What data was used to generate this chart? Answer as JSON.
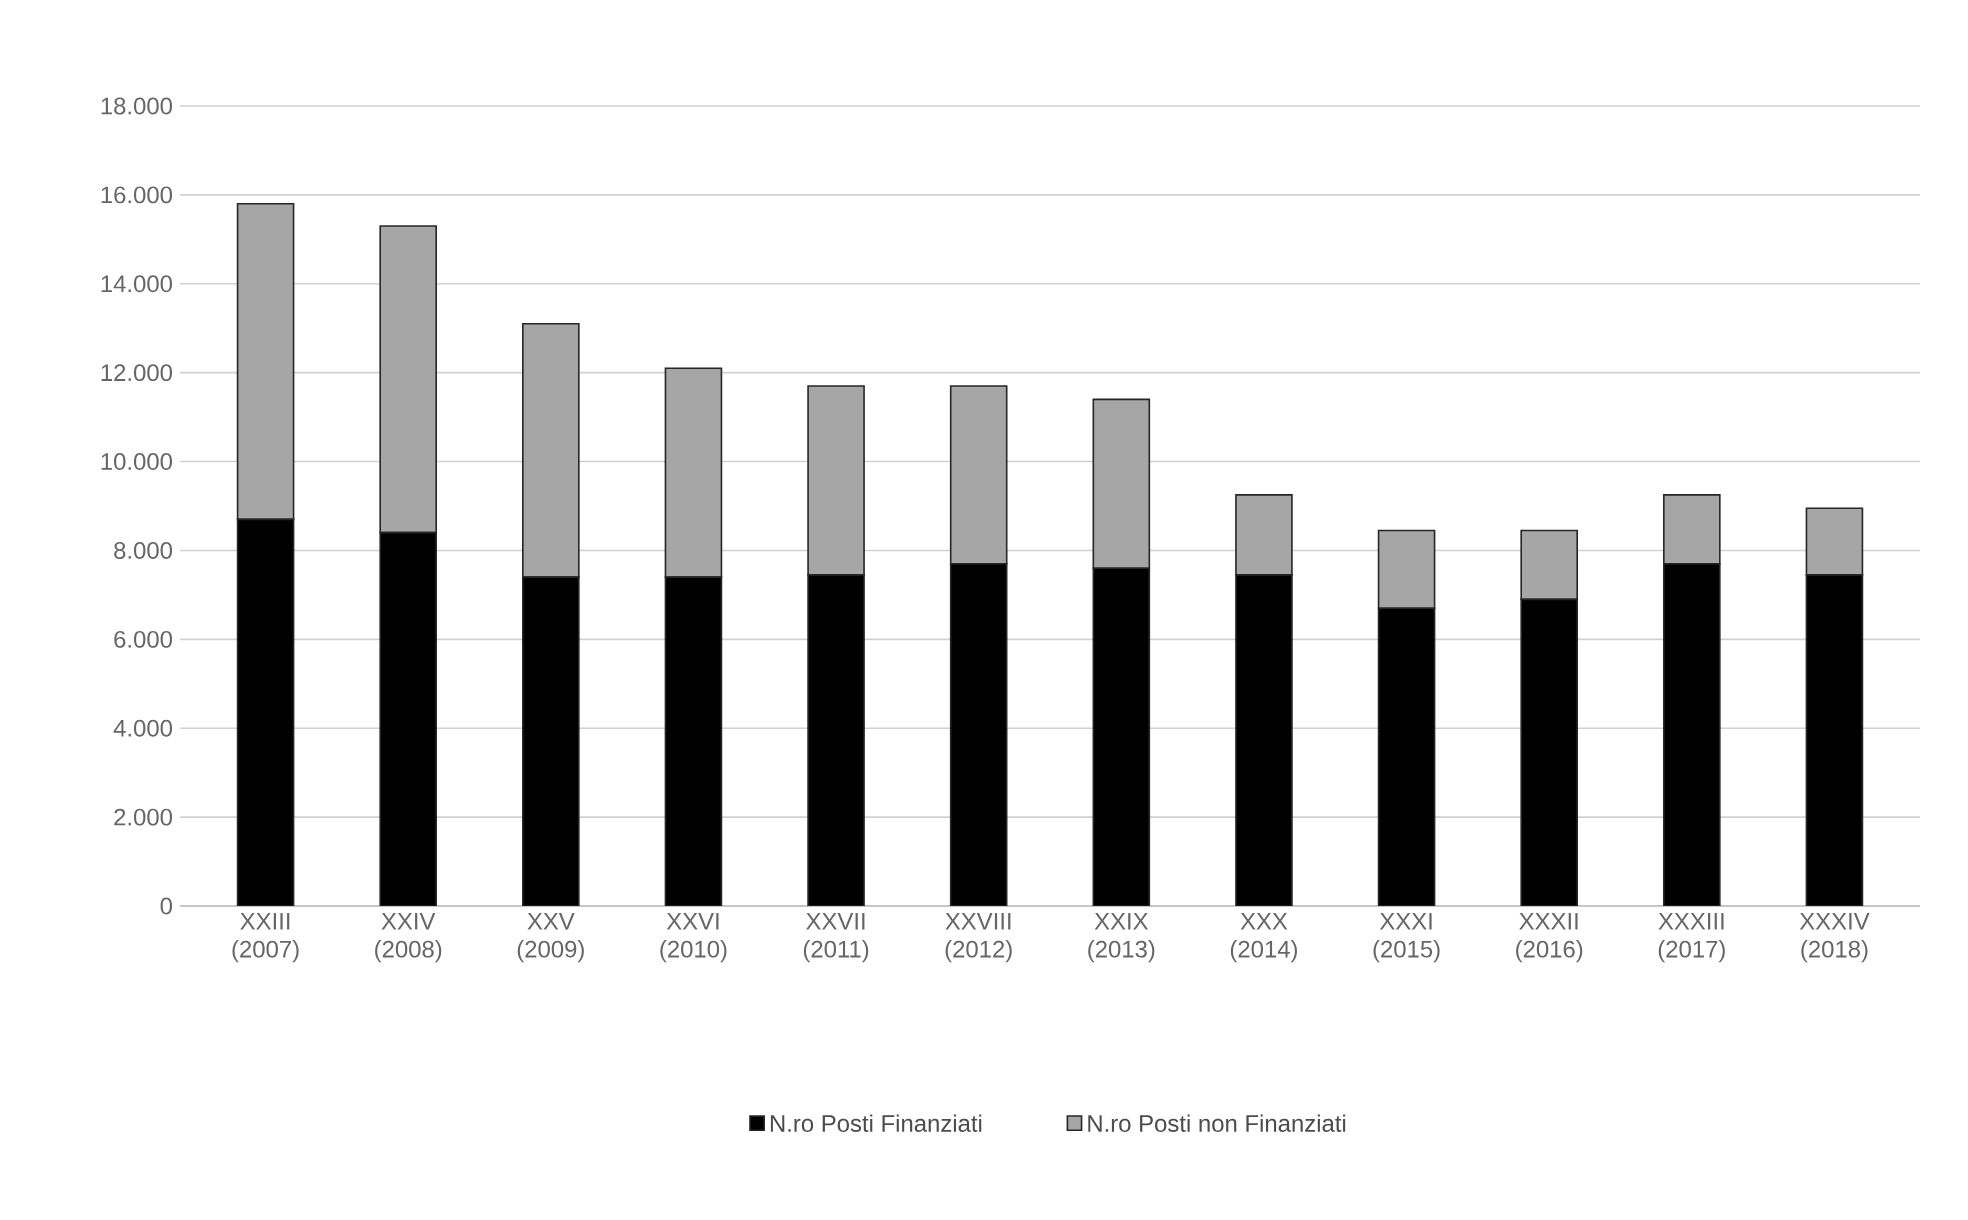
{
  "chart_data": {
    "type": "bar",
    "stacked": true,
    "categories": [
      "XXIII (2007)",
      "XXIV (2008)",
      "XXV (2009)",
      "XXVI (2010)",
      "XXVII (2011)",
      "XXVIII (2012)",
      "XXIX (2013)",
      "XXX (2014)",
      "XXXI (2015)",
      "XXXII (2016)",
      "XXXIII (2017)",
      "XXXIV (2018)"
    ],
    "series": [
      {
        "name": "N.ro Posti Finanziati",
        "color": "#000000",
        "values": [
          8700,
          8400,
          7400,
          7400,
          7450,
          7700,
          7600,
          7450,
          6700,
          6900,
          7700,
          7450
        ]
      },
      {
        "name": "N.ro Posti non Finanziati",
        "color": "#a6a6a6",
        "values": [
          7100,
          6900,
          5700,
          4700,
          4250,
          4000,
          3800,
          1800,
          1750,
          1550,
          1550,
          1500
        ]
      }
    ],
    "ylim": [
      0,
      18000
    ],
    "yticks": [
      {
        "value": 0,
        "label": "0"
      },
      {
        "value": 2000,
        "label": "2.000"
      },
      {
        "value": 4000,
        "label": "4.000"
      },
      {
        "value": 6000,
        "label": "6.000"
      },
      {
        "value": 8000,
        "label": "8.000"
      },
      {
        "value": 10000,
        "label": "10.000"
      },
      {
        "value": 12000,
        "label": "12.000"
      },
      {
        "value": 14000,
        "label": "14.000"
      },
      {
        "value": 16000,
        "label": "16.000"
      },
      {
        "value": 18000,
        "label": "18.000"
      }
    ],
    "grid": "y",
    "legend": "bottom"
  }
}
